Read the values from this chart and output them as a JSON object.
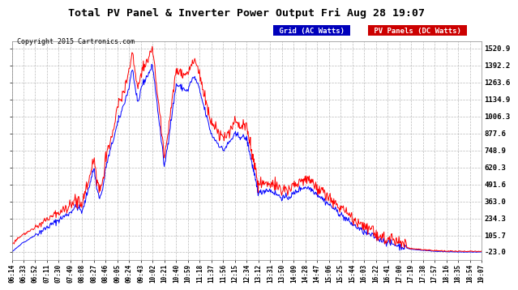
{
  "title": "Total PV Panel & Inverter Power Output Fri Aug 28 19:07",
  "copyright": "Copyright 2015 Cartronics.com",
  "legend_blue": "Grid (AC Watts)",
  "legend_red": "PV Panels (DC Watts)",
  "legend_blue_bg": "#0000bb",
  "legend_red_bg": "#cc0000",
  "background_color": "#ffffff",
  "plot_bg_color": "#ffffff",
  "grid_color": "#aaaaaa",
  "line_blue": "#0000ff",
  "line_red": "#ff0000",
  "yticks": [
    -23.0,
    105.7,
    234.3,
    363.0,
    491.6,
    620.3,
    748.9,
    877.6,
    1006.3,
    1134.9,
    1263.6,
    1392.2,
    1520.9
  ],
  "ymin": -23.0,
  "ymax": 1520.9,
  "x_labels": [
    "06:14",
    "06:33",
    "06:52",
    "07:11",
    "07:30",
    "07:49",
    "08:08",
    "08:27",
    "08:46",
    "09:05",
    "09:24",
    "09:43",
    "10:02",
    "10:21",
    "10:40",
    "10:59",
    "11:18",
    "11:37",
    "11:56",
    "12:15",
    "12:34",
    "13:12",
    "13:31",
    "13:50",
    "14:09",
    "14:28",
    "14:47",
    "15:06",
    "15:25",
    "15:44",
    "16:03",
    "16:22",
    "16:41",
    "17:00",
    "17:19",
    "17:38",
    "17:57",
    "18:16",
    "18:35",
    "18:54",
    "19:07"
  ]
}
